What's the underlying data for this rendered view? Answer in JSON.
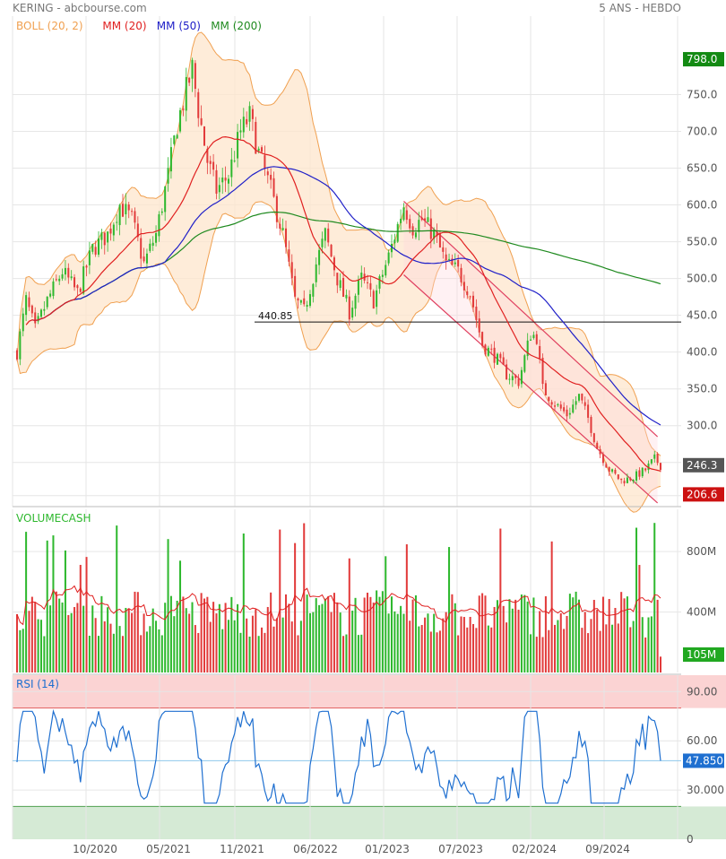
{
  "header": {
    "title": "KERING - abcbourse.com",
    "period": "5 ANS - HEBDO"
  },
  "colors": {
    "up": "#2eb82e",
    "down": "#e23b3b",
    "boll": "#f0a050",
    "bollFill": "#fde6cc",
    "mm20": "#e02020",
    "mm50": "#2020c8",
    "mm200": "#1f8a1f",
    "rsi": "#1e6fd0",
    "rsiHigh": "#fbd3d3",
    "rsiLow": "#d5ead5",
    "channel": "#e04060",
    "tagLast": "#555555",
    "tagHigh": "#138a13",
    "tagLow": "#cc1111",
    "tagVol": "#21a821"
  },
  "chart_data": [
    {
      "name": "price",
      "type": "candlestick",
      "legend": [
        {
          "label": "BOLL (20, 2)",
          "color": "#f0a050"
        },
        {
          "label": "MM (20)",
          "color": "#e02020"
        },
        {
          "label": "MM (50)",
          "color": "#2020c8"
        },
        {
          "label": "MM (200)",
          "color": "#1f8a1f"
        }
      ],
      "x_tick_labels": [
        "10/2020",
        "05/2021",
        "11/2021",
        "06/2022",
        "01/2023",
        "07/2023",
        "02/2024",
        "09/2024"
      ],
      "y_tick_labels": [
        "750.0",
        "700.0",
        "650.0",
        "600.0",
        "550.0",
        "500.0",
        "450.0",
        "400.0",
        "350.0",
        "300.0"
      ],
      "ylim": [
        190,
        820
      ],
      "grid": true,
      "anchors": [
        {
          "w": 0,
          "v": 400
        },
        {
          "w": 3,
          "v": 470
        },
        {
          "w": 6,
          "v": 430
        },
        {
          "w": 10,
          "v": 470
        },
        {
          "w": 15,
          "v": 510
        },
        {
          "w": 20,
          "v": 480
        },
        {
          "w": 25,
          "v": 540
        },
        {
          "w": 30,
          "v": 560
        },
        {
          "w": 34,
          "v": 600
        },
        {
          "w": 38,
          "v": 580
        },
        {
          "w": 42,
          "v": 520
        },
        {
          "w": 46,
          "v": 560
        },
        {
          "w": 50,
          "v": 640
        },
        {
          "w": 53,
          "v": 710
        },
        {
          "w": 56,
          "v": 755
        },
        {
          "w": 58,
          "v": 785
        },
        {
          "w": 60,
          "v": 730
        },
        {
          "w": 63,
          "v": 660
        },
        {
          "w": 66,
          "v": 620
        },
        {
          "w": 70,
          "v": 640
        },
        {
          "w": 74,
          "v": 700
        },
        {
          "w": 77,
          "v": 720
        },
        {
          "w": 80,
          "v": 670
        },
        {
          "w": 84,
          "v": 620
        },
        {
          "w": 88,
          "v": 560
        },
        {
          "w": 92,
          "v": 470
        },
        {
          "w": 95,
          "v": 455
        },
        {
          "w": 99,
          "v": 520
        },
        {
          "w": 102,
          "v": 560
        },
        {
          "w": 106,
          "v": 500
        },
        {
          "w": 110,
          "v": 455
        },
        {
          "w": 114,
          "v": 500
        },
        {
          "w": 118,
          "v": 470
        },
        {
          "w": 123,
          "v": 530
        },
        {
          "w": 128,
          "v": 600
        },
        {
          "w": 131,
          "v": 570
        },
        {
          "w": 134,
          "v": 580
        },
        {
          "w": 138,
          "v": 560
        },
        {
          "w": 142,
          "v": 520
        },
        {
          "w": 146,
          "v": 510
        },
        {
          "w": 150,
          "v": 480
        },
        {
          "w": 154,
          "v": 410
        },
        {
          "w": 158,
          "v": 395
        },
        {
          "w": 162,
          "v": 370
        },
        {
          "w": 166,
          "v": 360
        },
        {
          "w": 170,
          "v": 425
        },
        {
          "w": 172,
          "v": 420
        },
        {
          "w": 174,
          "v": 350
        },
        {
          "w": 178,
          "v": 330
        },
        {
          "w": 182,
          "v": 315
        },
        {
          "w": 186,
          "v": 340
        },
        {
          "w": 189,
          "v": 310
        },
        {
          "w": 192,
          "v": 270
        },
        {
          "w": 196,
          "v": 240
        },
        {
          "w": 200,
          "v": 225
        },
        {
          "w": 204,
          "v": 230
        },
        {
          "w": 208,
          "v": 240
        },
        {
          "w": 211,
          "v": 255
        },
        {
          "w": 213,
          "v": 246
        }
      ],
      "last_value": "246.3",
      "period_high": "798.0",
      "period_low": "206.6",
      "annotations": [
        {
          "text": "440.85",
          "value": 440.85,
          "kind": "horizontal support line"
        },
        {
          "kind": "descending channel",
          "from_week": 128,
          "to_week": 212
        }
      ]
    },
    {
      "name": "volume",
      "type": "bar",
      "legend": [
        {
          "label": "VOLUMECASH",
          "color": "#2eb82e"
        }
      ],
      "y_tick_labels": [
        "800M",
        "400M"
      ],
      "ylim_millions": [
        0,
        1080
      ],
      "last_value": "105M",
      "average_millions": 420
    },
    {
      "name": "rsi",
      "type": "line",
      "legend": [
        {
          "label": "RSI (14)",
          "color": "#1e6fd0"
        }
      ],
      "y_tick_labels": [
        "90.00",
        "60.00",
        "30.000",
        "0"
      ],
      "ylim": [
        0,
        100
      ],
      "overbought_zone": [
        80,
        100
      ],
      "oversold_zone": [
        0,
        20
      ],
      "last_value": "47.850",
      "reference_level": 47.85
    }
  ]
}
